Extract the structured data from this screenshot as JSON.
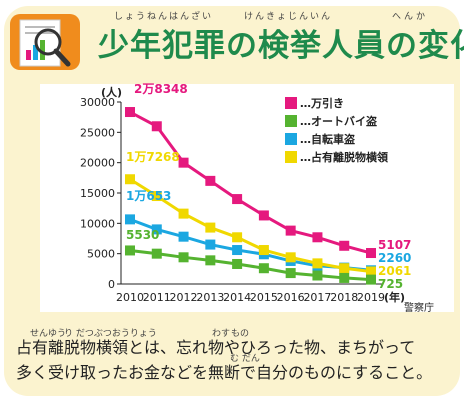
{
  "header": {
    "title": "少年犯罪の検挙人員の変化",
    "ruby": {
      "shounen_hanzai": "しょうねんはんざい",
      "kenkyo_jinin": "けんきょじんいん",
      "henka": "へんか"
    }
  },
  "chart_data": {
    "type": "line",
    "title": "",
    "xlabel": "(年)",
    "ylabel": "(人)",
    "ylim": [
      0,
      30000
    ],
    "yticks": [
      "0",
      "5000",
      "10000",
      "15000",
      "20000",
      "25000",
      "30000"
    ],
    "x": [
      "2010",
      "2011",
      "2012",
      "2013",
      "2014",
      "2015",
      "2016",
      "2017",
      "2018",
      "2019"
    ],
    "grid": false,
    "legend_position": "top-right",
    "series": [
      {
        "name": "…万引き",
        "color": "#e5197e",
        "values": [
          28348,
          26000,
          20000,
          17000,
          14000,
          11300,
          8800,
          7700,
          6300,
          5107
        ]
      },
      {
        "name": "…自転車盗",
        "color": "#1ba7e1",
        "values": [
          10653,
          9000,
          7800,
          6500,
          5600,
          4900,
          3800,
          3000,
          2700,
          2260
        ]
      },
      {
        "name": "…占有離脱物横領",
        "color": "#f0d800",
        "values": [
          17268,
          14500,
          11600,
          9300,
          7700,
          5600,
          4400,
          3400,
          2600,
          2061
        ]
      },
      {
        "name": "…オートバイ盗",
        "color": "#55b330",
        "values": [
          5530,
          5000,
          4400,
          3900,
          3300,
          2600,
          1800,
          1400,
          1000,
          725
        ]
      }
    ],
    "data_labels": {
      "first": [
        "2万8348",
        "1万653",
        "1万7268",
        "5530"
      ],
      "last": [
        "5107",
        "2260",
        "2061",
        "725"
      ]
    },
    "source": "警察庁"
  },
  "description": {
    "line1": "占有離脱物横領とは、忘れ物やひろった物、まちがって",
    "line2": "多く受け取ったお金などを無断で自分のものにすること。",
    "ruby": {
      "senyuu": "せんゆう",
      "ridatsu": "り だつぶつおうりょう",
      "wasure": "わす",
      "mono": "もの",
      "mudan": "む だん"
    }
  },
  "colors": {
    "title_green": "#1f8a4c",
    "background": "#fbf3cf",
    "icon_orange": "#f08c1d"
  }
}
